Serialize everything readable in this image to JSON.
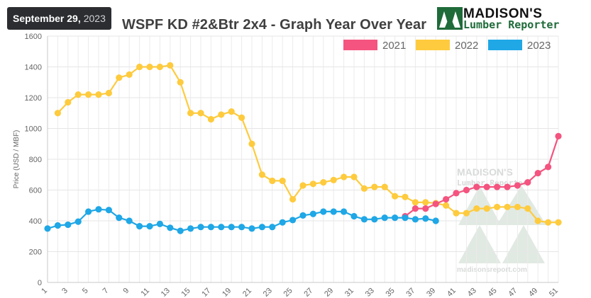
{
  "header": {
    "date_month_day": "September 29,",
    "date_year": "2023",
    "title": "WSPF KD #2&Btr 2x4 - Graph Year Over Year"
  },
  "logo": {
    "line1": "MADISON'S",
    "line2": "Lumber Reporter",
    "brand_green": "#1f6b3a"
  },
  "watermark": {
    "line1": "MADISON'S",
    "line2": "Lumber Reporter",
    "url": "madisonsreport.com"
  },
  "chart_data": {
    "type": "line",
    "title": "WSPF KD #2&Btr 2x4 - Graph Year Over Year",
    "xlabel": "",
    "ylabel": "Price (USD / MBF)",
    "xlim": [
      1,
      51
    ],
    "ylim": [
      0,
      1600
    ],
    "yticks": [
      0,
      200,
      400,
      600,
      800,
      1000,
      1200,
      1400,
      1600
    ],
    "xticks": [
      1,
      3,
      5,
      7,
      9,
      11,
      13,
      15,
      17,
      19,
      21,
      23,
      25,
      27,
      29,
      31,
      33,
      35,
      37,
      39,
      41,
      43,
      45,
      47,
      49,
      51
    ],
    "grid": true,
    "legend_position": "top-right",
    "series": [
      {
        "name": "2021",
        "color": "#f4547f",
        "x": [
          36,
          37,
          38,
          39,
          40,
          41,
          42,
          43,
          44,
          45,
          46,
          47,
          48,
          49,
          50,
          51
        ],
        "y": [
          430,
          480,
          480,
          510,
          540,
          580,
          600,
          620,
          620,
          620,
          620,
          630,
          650,
          710,
          750,
          950
        ]
      },
      {
        "name": "2022",
        "color": "#fecb3e",
        "x": [
          2,
          3,
          4,
          5,
          6,
          7,
          8,
          9,
          10,
          11,
          12,
          13,
          14,
          15,
          16,
          17,
          18,
          19,
          20,
          21,
          22,
          23,
          24,
          25,
          26,
          27,
          28,
          29,
          30,
          31,
          32,
          33,
          34,
          35,
          36,
          37,
          38,
          39,
          40,
          41,
          42,
          43,
          44,
          45,
          46,
          47,
          48,
          49,
          50,
          51
        ],
        "y": [
          1100,
          1170,
          1220,
          1220,
          1220,
          1230,
          1330,
          1350,
          1400,
          1400,
          1400,
          1410,
          1300,
          1100,
          1100,
          1060,
          1090,
          1110,
          1070,
          900,
          700,
          660,
          660,
          540,
          630,
          640,
          650,
          665,
          685,
          685,
          610,
          620,
          620,
          560,
          555,
          520,
          520,
          515,
          500,
          450,
          450,
          480,
          480,
          490,
          490,
          490,
          480,
          400,
          390,
          390
        ]
      },
      {
        "name": "2023",
        "color": "#1fa7e6",
        "x": [
          1,
          2,
          3,
          4,
          5,
          6,
          7,
          8,
          9,
          10,
          11,
          12,
          13,
          14,
          15,
          16,
          17,
          18,
          19,
          20,
          21,
          22,
          23,
          24,
          25,
          26,
          27,
          28,
          29,
          30,
          31,
          32,
          33,
          34,
          35,
          36,
          37,
          38,
          39
        ],
        "y": [
          350,
          370,
          375,
          395,
          460,
          475,
          470,
          420,
          400,
          365,
          365,
          380,
          355,
          335,
          350,
          360,
          360,
          360,
          360,
          360,
          350,
          360,
          360,
          390,
          405,
          435,
          445,
          460,
          460,
          460,
          430,
          410,
          410,
          420,
          420,
          420,
          410,
          415,
          400
        ]
      }
    ]
  }
}
